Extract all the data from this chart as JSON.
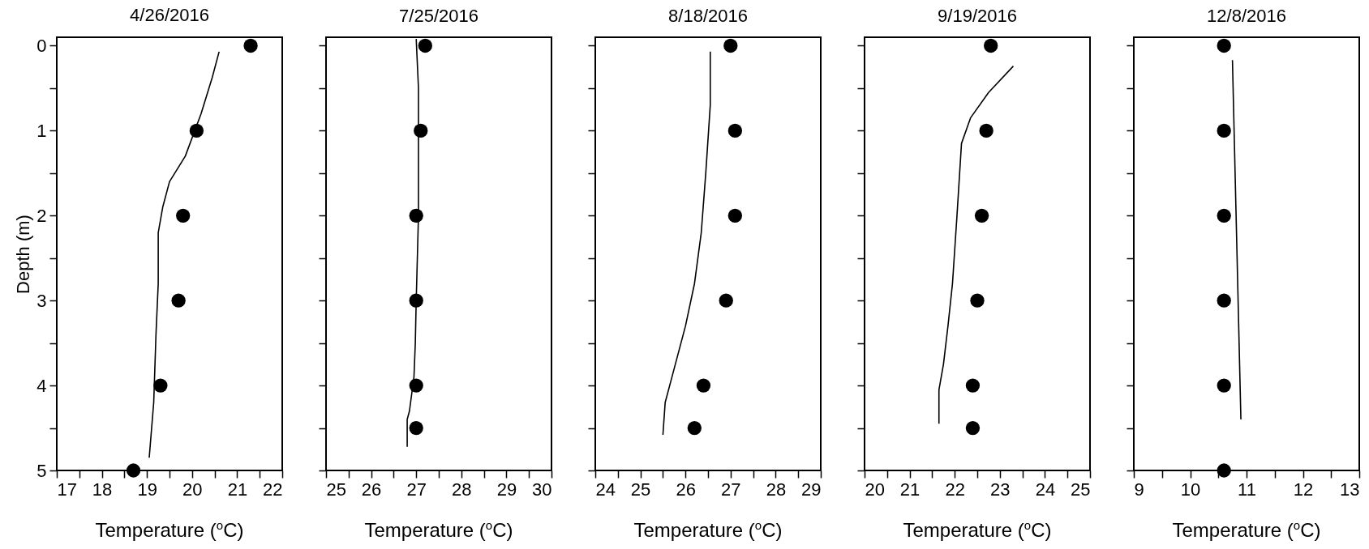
{
  "chart_data": [
    {
      "type": "scatter",
      "title": "4/26/2016",
      "xlabel": "Temperature ($^{o}$C)",
      "ylabel": "Depth (m)",
      "xlim": [
        17,
        22
      ],
      "xticks": [
        17,
        {
          "value": 17.5,
          "label": null
        },
        18,
        {
          "value": 18.5,
          "label": null
        },
        19,
        {
          "value": 19.5,
          "label": null
        },
        20,
        {
          "value": 20.5,
          "label": null
        },
        21,
        {
          "value": 21.5,
          "label": null
        },
        22
      ],
      "ylim": [
        5,
        -0.1
      ],
      "yticks": [
        0,
        {
          "value": 0.5,
          "label": null
        },
        1,
        {
          "value": 1.5,
          "label": null
        },
        2,
        {
          "value": 2.5,
          "label": null
        },
        3,
        {
          "value": 3.5,
          "label": null
        },
        4,
        {
          "value": 4.5,
          "label": null
        },
        5
      ],
      "grid": false,
      "series": [
        {
          "type": "scatter",
          "marker": "circle",
          "color": "#000000",
          "x": [
            21.3,
            20.1,
            19.8,
            19.7,
            19.3,
            18.7
          ],
          "values": [
            0,
            1,
            2,
            3,
            4,
            5
          ]
        },
        {
          "type": "line",
          "marker": "none",
          "color": "#000000",
          "x": [
            20.6,
            20.45,
            20.2,
            19.85,
            19.5,
            19.35,
            19.25,
            19.25,
            19.2,
            19.15,
            19.05
          ],
          "values": [
            0.07,
            0.37,
            0.8,
            1.3,
            1.6,
            1.9,
            2.2,
            2.8,
            3.4,
            4.2,
            4.85
          ]
        }
      ]
    },
    {
      "type": "scatter",
      "title": "7/25/2016",
      "xlabel": "Temperature ($^{o}$C)",
      "tick_labels": "x",
      "xlim": [
        25,
        30
      ],
      "xticks": [
        25,
        {
          "value": 25.5,
          "label": null
        },
        26,
        {
          "value": 26.5,
          "label": null
        },
        27,
        {
          "value": 27.5,
          "label": null
        },
        28,
        {
          "value": 28.5,
          "label": null
        },
        29,
        {
          "value": 29.5,
          "label": null
        },
        30
      ],
      "ylim": [
        5,
        -0.1
      ],
      "yticks": [
        0,
        {
          "value": 0.5,
          "label": null
        },
        1,
        {
          "value": 1.5,
          "label": null
        },
        2,
        {
          "value": 2.5,
          "label": null
        },
        3,
        {
          "value": 3.5,
          "label": null
        },
        4,
        {
          "value": 4.5,
          "label": null
        },
        5
      ],
      "grid": false,
      "series": [
        {
          "type": "scatter",
          "marker": "circle",
          "color": "#000000",
          "x": [
            27.2,
            27.1,
            27.0,
            27.0,
            27.0,
            27.0
          ],
          "values": [
            0,
            1,
            2,
            3,
            4,
            4.5
          ]
        },
        {
          "type": "line",
          "marker": "none",
          "color": "#000000",
          "x": [
            27.0,
            27.05,
            27.05,
            27.05,
            27.0,
            26.98,
            26.95,
            26.85,
            26.8,
            26.8
          ],
          "values": [
            -0.08,
            0.5,
            1.5,
            2.0,
            3.0,
            3.5,
            3.9,
            4.3,
            4.4,
            4.72
          ]
        }
      ]
    },
    {
      "type": "scatter",
      "title": "8/18/2016",
      "xlabel": "Temperature ($^{o}$C)",
      "tick_labels": "x",
      "xlim": [
        24,
        29
      ],
      "xticks": [
        24,
        {
          "value": 24.5,
          "label": null
        },
        25,
        {
          "value": 25.5,
          "label": null
        },
        26,
        {
          "value": 26.5,
          "label": null
        },
        27,
        {
          "value": 27.5,
          "label": null
        },
        28,
        {
          "value": 28.5,
          "label": null
        },
        29
      ],
      "ylim": [
        5,
        -0.1
      ],
      "yticks": [
        0,
        {
          "value": 0.5,
          "label": null
        },
        1,
        {
          "value": 1.5,
          "label": null
        },
        2,
        {
          "value": 2.5,
          "label": null
        },
        3,
        {
          "value": 3.5,
          "label": null
        },
        4,
        {
          "value": 4.5,
          "label": null
        },
        5
      ],
      "grid": false,
      "series": [
        {
          "type": "scatter",
          "marker": "circle",
          "color": "#000000",
          "x": [
            27.0,
            27.1,
            27.1,
            26.9,
            26.4,
            26.2
          ],
          "values": [
            0,
            1,
            2,
            3,
            4,
            4.5
          ]
        },
        {
          "type": "line",
          "marker": "none",
          "color": "#000000",
          "x": [
            26.55,
            26.55,
            26.45,
            26.35,
            26.2,
            26.0,
            25.7,
            25.55,
            25.5
          ],
          "values": [
            0.07,
            0.7,
            1.5,
            2.2,
            2.8,
            3.3,
            3.9,
            4.2,
            4.58
          ]
        }
      ]
    },
    {
      "type": "scatter",
      "title": "9/19/2016",
      "xlabel": "Temperature ($^{o}$C)",
      "tick_labels": "x",
      "xlim": [
        20,
        25
      ],
      "xticks": [
        20,
        {
          "value": 20.5,
          "label": null
        },
        21,
        {
          "value": 21.5,
          "label": null
        },
        22,
        {
          "value": 22.5,
          "label": null
        },
        23,
        {
          "value": 23.5,
          "label": null
        },
        24,
        {
          "value": 24.5,
          "label": null
        },
        25
      ],
      "ylim": [
        5,
        -0.1
      ],
      "yticks": [
        0,
        {
          "value": 0.5,
          "label": null
        },
        1,
        {
          "value": 1.5,
          "label": null
        },
        2,
        {
          "value": 2.5,
          "label": null
        },
        3,
        {
          "value": 3.5,
          "label": null
        },
        4,
        {
          "value": 4.5,
          "label": null
        },
        5
      ],
      "grid": false,
      "series": [
        {
          "type": "scatter",
          "marker": "circle",
          "color": "#000000",
          "x": [
            22.8,
            22.7,
            22.6,
            22.5,
            22.4,
            22.4
          ],
          "values": [
            0,
            1,
            2,
            3,
            4,
            4.5
          ]
        },
        {
          "type": "line",
          "marker": "none",
          "color": "#000000",
          "x": [
            23.3,
            22.75,
            22.35,
            22.15,
            22.05,
            21.95,
            21.85,
            21.75,
            21.65,
            21.65
          ],
          "values": [
            0.24,
            0.55,
            0.85,
            1.15,
            2.0,
            2.8,
            3.3,
            3.75,
            4.05,
            4.45
          ]
        }
      ]
    },
    {
      "type": "scatter",
      "title": "12/8/2016",
      "xlabel": "Temperature ($^{o}$C)",
      "tick_labels": "x",
      "xlim": [
        9,
        13
      ],
      "xticks": [
        9,
        {
          "value": 9.5,
          "label": null
        },
        10,
        {
          "value": 10.5,
          "label": null
        },
        11,
        {
          "value": 11.5,
          "label": null
        },
        12,
        {
          "value": 12.5,
          "label": null
        },
        13
      ],
      "ylim": [
        5,
        -0.1
      ],
      "yticks": [
        0,
        {
          "value": 0.5,
          "label": null
        },
        1,
        {
          "value": 1.5,
          "label": null
        },
        2,
        {
          "value": 2.5,
          "label": null
        },
        3,
        {
          "value": 3.5,
          "label": null
        },
        4,
        {
          "value": 4.5,
          "label": null
        },
        5
      ],
      "grid": false,
      "series": [
        {
          "type": "scatter",
          "marker": "circle",
          "color": "#000000",
          "x": [
            10.6,
            10.6,
            10.6,
            10.6,
            10.6,
            10.6
          ],
          "values": [
            0,
            1,
            2,
            3,
            4,
            5
          ]
        },
        {
          "type": "line",
          "marker": "none",
          "color": "#000000",
          "x": [
            10.75,
            10.9
          ],
          "values": [
            0.17,
            4.4
          ]
        }
      ]
    }
  ]
}
